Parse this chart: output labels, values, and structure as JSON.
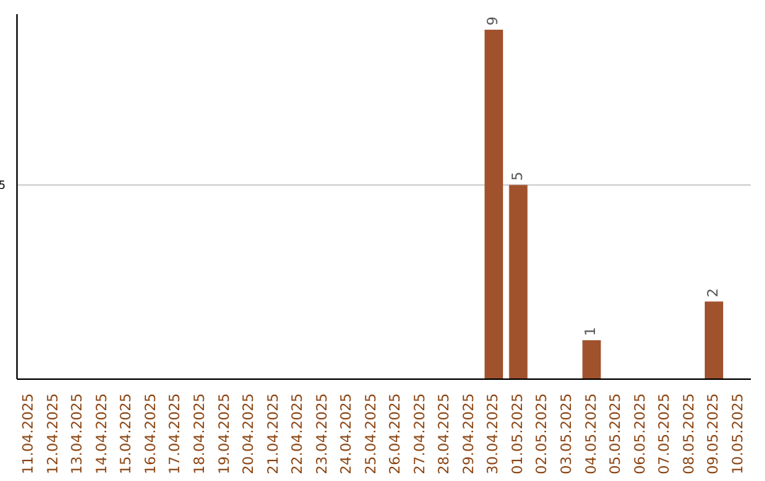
{
  "chart_data": {
    "type": "bar",
    "categories": [
      "11.04.2025",
      "12.04.2025",
      "13.04.2025",
      "14.04.2025",
      "15.04.2025",
      "16.04.2025",
      "17.04.2025",
      "18.04.2025",
      "19.04.2025",
      "20.04.2025",
      "21.04.2025",
      "22.04.2025",
      "23.04.2025",
      "24.04.2025",
      "25.04.2025",
      "26.04.2025",
      "27.04.2025",
      "28.04.2025",
      "29.04.2025",
      "30.04.2025",
      "01.05.2025",
      "02.05.2025",
      "03.05.2025",
      "04.05.2025",
      "05.05.2025",
      "06.05.2025",
      "07.05.2025",
      "08.05.2025",
      "09.05.2025",
      "10.05.2025"
    ],
    "values": [
      null,
      null,
      null,
      null,
      null,
      null,
      null,
      null,
      null,
      null,
      null,
      null,
      null,
      null,
      null,
      null,
      null,
      null,
      null,
      9,
      5,
      null,
      null,
      1,
      null,
      null,
      null,
      null,
      2,
      null
    ],
    "color": "#a0522d",
    "ylim": [
      0,
      9.4
    ],
    "yticks": [
      5
    ],
    "grid": "y",
    "data_labels": true
  }
}
